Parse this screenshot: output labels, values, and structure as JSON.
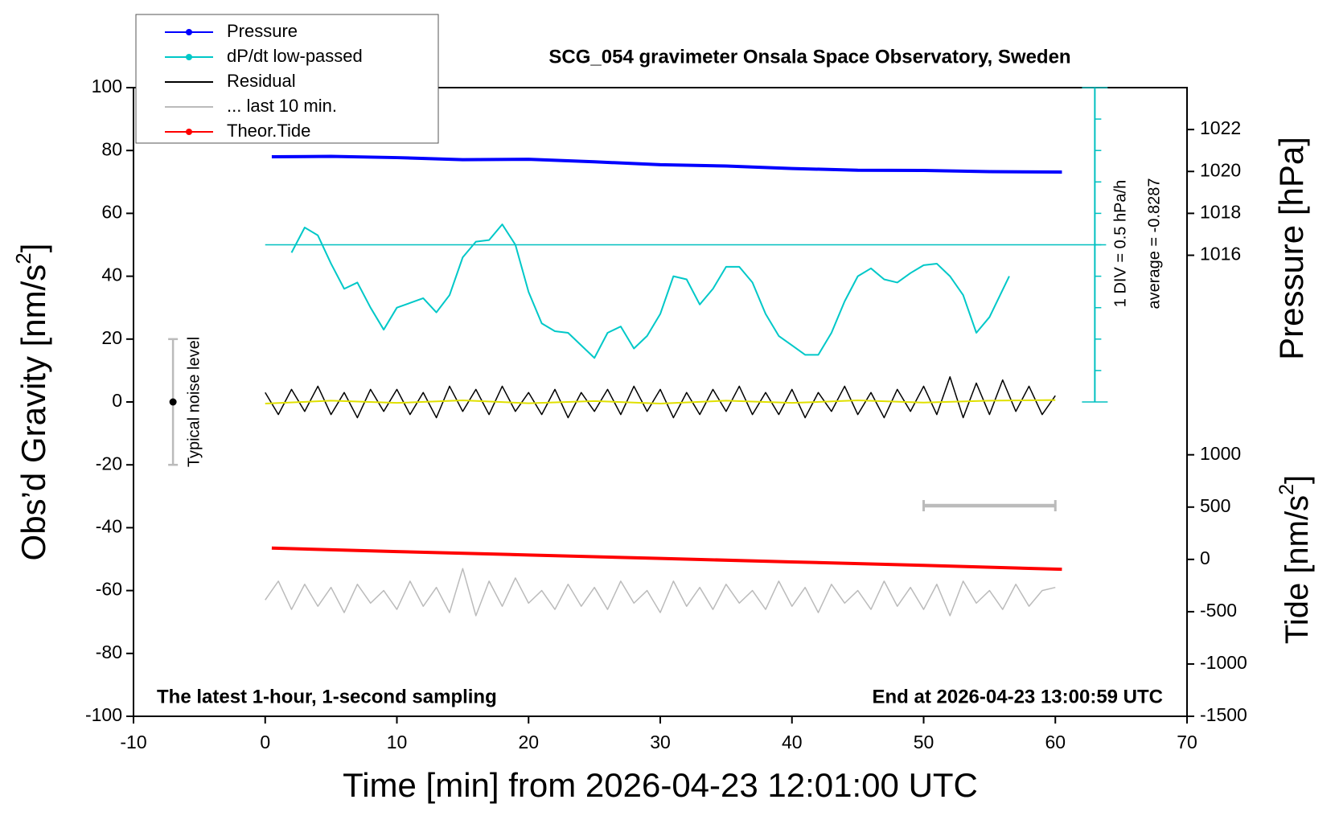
{
  "chart_data": {
    "type": "line",
    "title": "SCG_054 gravimeter Onsala Space Observatory, Sweden",
    "xlabel": "Time [min] from 2026-04-23 12:01:00 UTC",
    "ylabel": {
      "text": "Obs’d Gravity [nm/s",
      "sup": "2",
      "end": "]"
    },
    "y2label": "Pressure [hPa]",
    "y3label": {
      "text": "Tide [nm/s",
      "sup": "2",
      "end": "]"
    },
    "xlim": [
      -10,
      70
    ],
    "xticks": [
      -10,
      0,
      10,
      20,
      30,
      40,
      50,
      60,
      70
    ],
    "ylim": [
      -100,
      100
    ],
    "yticks": [
      -100,
      -80,
      -60,
      -40,
      -20,
      0,
      20,
      40,
      60,
      80,
      100
    ],
    "y2lim": [
      994,
      1024
    ],
    "y2ticks": [
      1016,
      1018,
      1020,
      1022
    ],
    "y3lim": [
      -1500,
      4510
    ],
    "y3ticks": [
      -1500,
      -1000,
      -500,
      0,
      500,
      1000
    ],
    "series": [
      {
        "name": "Pressure",
        "color": "#0000ff",
        "axis": "y2",
        "legend_marker": true,
        "width": 4,
        "x": [
          0.5,
          5,
          10,
          15,
          20,
          25,
          30,
          35,
          40,
          45,
          50,
          55,
          60.5
        ],
        "values": [
          1020.7,
          1020.72,
          1020.66,
          1020.56,
          1020.58,
          1020.46,
          1020.32,
          1020.26,
          1020.14,
          1020.06,
          1020.05,
          1019.99,
          1019.97
        ]
      },
      {
        "name": "dP/dt low-passed",
        "color": "#00c8c8",
        "axis": "y",
        "legend_marker": true,
        "width": 2,
        "x": [
          2,
          3,
          4,
          5,
          6,
          7,
          8,
          9,
          10,
          11,
          12,
          13,
          14,
          15,
          16,
          17,
          18,
          19,
          20,
          21,
          22,
          23,
          24,
          25,
          26,
          27,
          28,
          29,
          30,
          31,
          32,
          33,
          34,
          35,
          36,
          37,
          38,
          39,
          40,
          41,
          42,
          43,
          44,
          45,
          46,
          47,
          48,
          49,
          50,
          51,
          52,
          53,
          54,
          55,
          56.5
        ],
        "values": [
          47.5,
          55.5,
          53,
          44,
          36,
          38,
          30,
          23,
          30,
          31.5,
          33,
          28.5,
          34,
          46,
          51,
          51.5,
          56.5,
          50,
          35,
          25,
          22.5,
          22,
          18,
          14,
          22,
          24,
          17,
          21,
          28,
          40,
          39,
          31,
          36,
          43,
          43,
          38,
          28,
          21,
          18,
          15,
          15,
          22,
          32,
          40,
          42.5,
          39,
          38,
          41,
          43.5,
          44,
          40,
          34,
          22,
          27,
          40
        ]
      },
      {
        "name": "Residual",
        "color": "#000000",
        "axis": "y",
        "legend_marker": false,
        "width": 1.5,
        "x": [
          0,
          1,
          2,
          3,
          4,
          5,
          6,
          7,
          8,
          9,
          10,
          11,
          12,
          13,
          14,
          15,
          16,
          17,
          18,
          19,
          20,
          21,
          22,
          23,
          24,
          25,
          26,
          27,
          28,
          29,
          30,
          31,
          32,
          33,
          34,
          35,
          36,
          37,
          38,
          39,
          40,
          41,
          42,
          43,
          44,
          45,
          46,
          47,
          48,
          49,
          50,
          51,
          52,
          53,
          54,
          55,
          56,
          57,
          58,
          59,
          60
        ],
        "values": [
          3,
          -4,
          4,
          -3,
          5,
          -4,
          3,
          -5,
          4,
          -3,
          4,
          -4,
          3,
          -5,
          5,
          -3,
          4,
          -4,
          5,
          -3,
          3,
          -4,
          4,
          -5,
          3,
          -3,
          4,
          -4,
          5,
          -3,
          4,
          -5,
          3,
          -4,
          4,
          -3,
          5,
          -4,
          3,
          -4,
          4,
          -5,
          3,
          -3,
          5,
          -4,
          3,
          -5,
          4,
          -3,
          5,
          -4,
          8,
          -5,
          6,
          -4,
          7,
          -3,
          5,
          -4,
          2
        ]
      },
      {
        "color": "#e0e000",
        "axis": "y",
        "width": 2,
        "x": [
          0,
          5,
          10,
          15,
          20,
          25,
          30,
          35,
          40,
          45,
          50,
          55,
          60
        ],
        "values": [
          -0.5,
          0.4,
          -0.3,
          0.5,
          -0.4,
          0.3,
          -0.5,
          0.4,
          -0.3,
          0.5,
          -0.2,
          0.4,
          0.6
        ]
      },
      {
        "name": "... last 10 min.",
        "color": "#bbbbbb",
        "axis": "y",
        "legend_marker": false,
        "width": 1.5,
        "x": [
          0,
          1,
          2,
          3,
          4,
          5,
          6,
          7,
          8,
          9,
          10,
          11,
          12,
          13,
          14,
          15,
          16,
          17,
          18,
          19,
          20,
          21,
          22,
          23,
          24,
          25,
          26,
          27,
          28,
          29,
          30,
          31,
          32,
          33,
          34,
          35,
          36,
          37,
          38,
          39,
          40,
          41,
          42,
          43,
          44,
          45,
          46,
          47,
          48,
          49,
          50,
          51,
          52,
          53,
          54,
          55,
          56,
          57,
          58,
          59,
          60
        ],
        "values": [
          -63,
          -57,
          -66,
          -58,
          -65,
          -59,
          -67,
          -58,
          -64,
          -60,
          -66,
          -57,
          -65,
          -59,
          -67,
          -53,
          -68,
          -57,
          -65,
          -56,
          -64,
          -60,
          -66,
          -58,
          -65,
          -59,
          -66,
          -57,
          -64,
          -60,
          -67,
          -57,
          -65,
          -59,
          -66,
          -58,
          -64,
          -60,
          -66,
          -57,
          -65,
          -59,
          -67,
          -58,
          -64,
          -60,
          -66,
          -57,
          -65,
          -59,
          -66,
          -58,
          -68,
          -57,
          -64,
          -60,
          -66,
          -58,
          -65,
          -60,
          -59
        ]
      },
      {
        "name": "Theor.Tide",
        "color": "#ff0000",
        "axis": "y3",
        "legend_marker": true,
        "width": 4,
        "x": [
          0.5,
          10,
          20,
          30,
          40,
          50,
          60.5
        ],
        "values": [
          108,
          75,
          42,
          9,
          -24,
          -57,
          -95
        ]
      }
    ],
    "noise_bar": {
      "x": -7,
      "center": 0,
      "error": 20,
      "label": "Typical noise level"
    },
    "scale_bar": {
      "x": [
        50,
        60
      ],
      "y": -33
    },
    "dpdt_scale": {
      "x": 63,
      "x0": 0,
      "ref": 50,
      "ticks": [
        0,
        10,
        20,
        30,
        40,
        50,
        60,
        70,
        80,
        90,
        100
      ],
      "div_label": "1 DIV = 0.5 hPa/h",
      "average_label": "average = -0.8287"
    },
    "note_left": "The latest 1-hour, 1-second sampling",
    "note_right": "End at 2026-04-23 13:00:59 UTC"
  }
}
